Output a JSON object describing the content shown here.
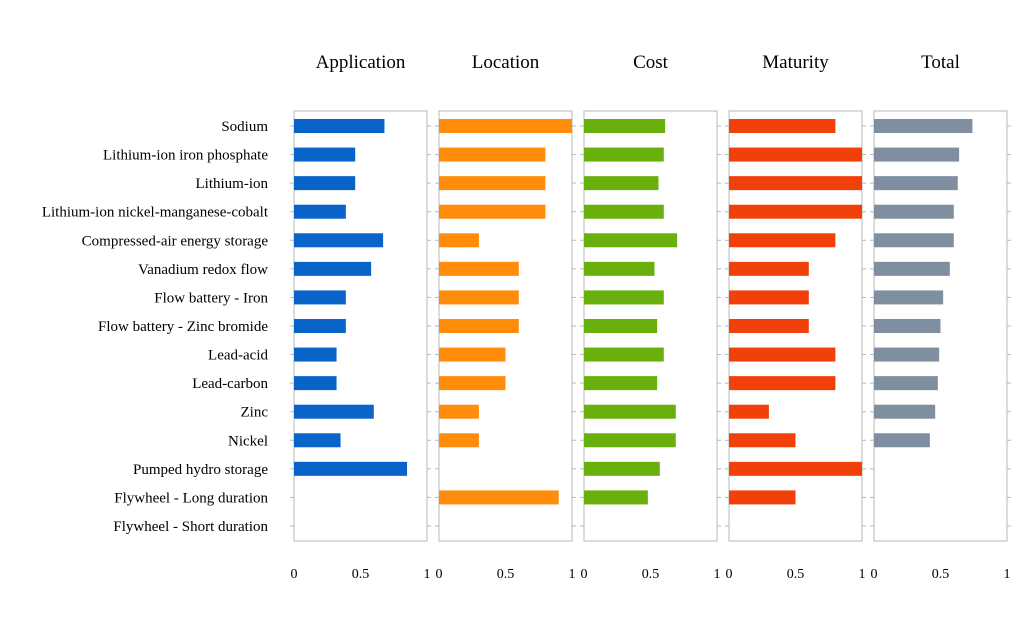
{
  "chart_data": {
    "type": "bar",
    "orientation": "horizontal",
    "categories": [
      "Sodium",
      "Lithium-ion iron phosphate",
      "Lithium-ion",
      "Lithium-ion nickel-manganese-cobalt",
      "Compressed-air energy storage",
      "Vanadium redox flow",
      "Flow battery - Iron",
      "Flow battery - Zinc bromide",
      "Lead-acid",
      "Lead-carbon",
      "Zinc",
      "Nickel",
      "Pumped hydro storage",
      "Flywheel - Long duration",
      "Flywheel - Short duration"
    ],
    "xlim": [
      0,
      1
    ],
    "xticks": [
      "0",
      "0.5",
      "1"
    ],
    "grid": false,
    "legend": "none",
    "panels": [
      {
        "title": "Application",
        "color": "#0a63c9",
        "values": [
          0.68,
          0.46,
          0.46,
          0.39,
          0.67,
          0.58,
          0.39,
          0.39,
          0.32,
          0.32,
          0.6,
          0.35,
          0.85,
          null,
          null
        ]
      },
      {
        "title": "Location",
        "color": "#ff8c0a",
        "values": [
          1.0,
          0.8,
          0.8,
          0.8,
          0.3,
          0.6,
          0.6,
          0.6,
          0.5,
          0.5,
          0.3,
          0.3,
          null,
          0.9,
          null
        ]
      },
      {
        "title": "Cost",
        "color": "#6ab00d",
        "values": [
          0.61,
          0.6,
          0.56,
          0.6,
          0.7,
          0.53,
          0.6,
          0.55,
          0.6,
          0.55,
          0.69,
          0.69,
          0.57,
          0.48,
          null
        ]
      },
      {
        "title": "Maturity",
        "color": "#f2400a",
        "values": [
          0.8,
          1.0,
          1.0,
          1.0,
          0.8,
          0.6,
          0.6,
          0.6,
          0.8,
          0.8,
          0.3,
          0.5,
          1.0,
          0.5,
          null
        ]
      },
      {
        "title": "Total",
        "color": "#7f8fa0",
        "values": [
          0.74,
          0.64,
          0.63,
          0.6,
          0.6,
          0.57,
          0.52,
          0.5,
          0.49,
          0.48,
          0.46,
          0.42,
          null,
          null,
          null
        ]
      }
    ]
  }
}
